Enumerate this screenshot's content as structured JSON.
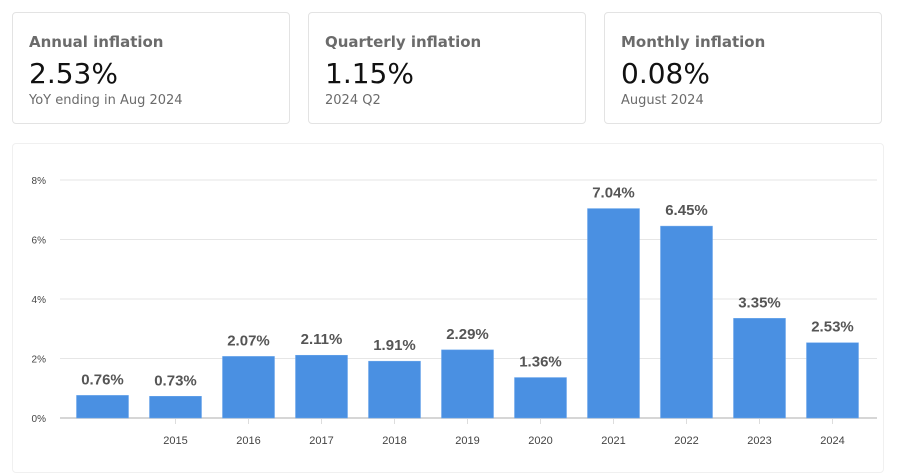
{
  "cards": [
    {
      "title": "Annual inflation",
      "value": "2.53%",
      "subtitle": "YoY ending in Aug 2024"
    },
    {
      "title": "Quarterly inflation",
      "value": "1.15%",
      "subtitle": "2024 Q2"
    },
    {
      "title": "Monthly inflation",
      "value": "0.08%",
      "subtitle": "August 2024"
    }
  ],
  "chart_data": {
    "type": "bar",
    "categories": [
      "",
      "2015",
      "2016",
      "2017",
      "2018",
      "2019",
      "2020",
      "2021",
      "2022",
      "2023",
      "2024"
    ],
    "values": [
      0.76,
      0.73,
      2.07,
      2.11,
      1.91,
      2.29,
      1.36,
      7.04,
      6.45,
      3.35,
      2.53
    ],
    "data_labels": [
      "0.76%",
      "0.73%",
      "2.07%",
      "2.11%",
      "1.91%",
      "2.29%",
      "1.36%",
      "7.04%",
      "6.45%",
      "3.35%",
      "2.53%"
    ],
    "y_ticks": [
      "0%",
      "2%",
      "4%",
      "6%",
      "8%"
    ],
    "ylim": [
      0,
      8
    ],
    "grid": true,
    "bar_color": "#4a90e2"
  }
}
